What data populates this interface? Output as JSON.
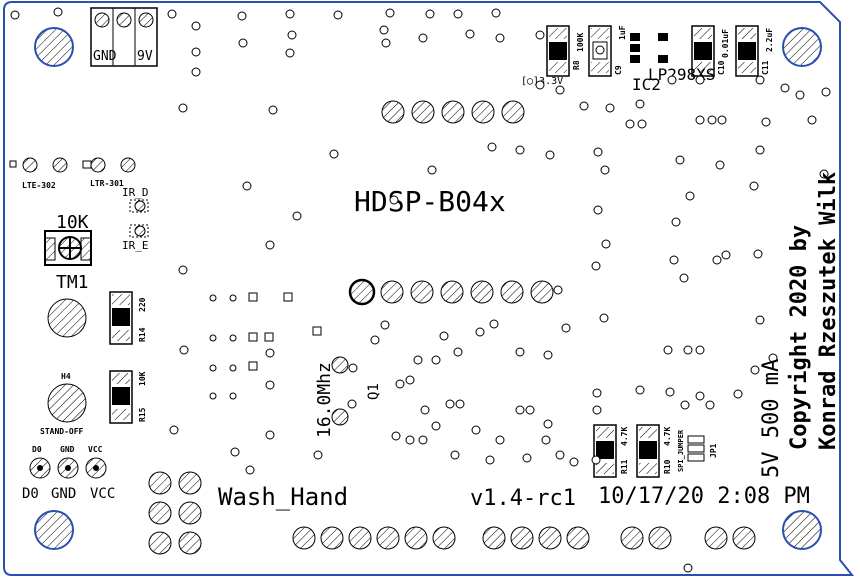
{
  "colors": {
    "outline": "#2a4fb0",
    "ink": "#000000",
    "pad_fill": "#ffffff"
  },
  "board": {
    "power_header_gnd": "GND",
    "power_header_9v": "9V",
    "display_label": "HDSP-B04x",
    "pot_value": "10K",
    "pot_ref": "TM1",
    "crystal_label": "16.0Mhz",
    "crystal_ref": "Q1",
    "regulator_label": "LP298XS",
    "regulator_ref": "IC2",
    "power_mark": "[◯]3.3V",
    "ir_d": "IR_D",
    "ir_e": "IR_E",
    "lte302": "LTE-302",
    "ltr301": "LTR-301",
    "r14_value": "220",
    "r14_ref": "R14",
    "r15_value": "10K",
    "r15_ref": "R15",
    "r8_value": "100K",
    "r8_ref": "R8",
    "c9_value": "1uF",
    "c9_ref": "C9",
    "c10_value": "0.01uF",
    "c10_ref": "C10",
    "c11_value": "2.2uF",
    "c11_ref": "C11",
    "r11_value": "4.7K",
    "r11_ref": "R11",
    "r10_value": "4.7K",
    "r10_ref": "R10",
    "spi_jumper": "SPI_JUMPER",
    "jp1": "JP1",
    "h4": "H4",
    "standoff": "STAND-OFF",
    "small_d0": "D0",
    "small_gnd": "GND",
    "small_vcc": "VCC",
    "big_d0": "D0",
    "big_gnd": "GND",
    "big_vcc": "VCC",
    "project_name": "Wash_Hand",
    "version": "v1.4-rc1",
    "timestamp": "10/17/20 2:08 PM",
    "current": "5V 500 mA",
    "copyright_1": "Copyright 2020 by",
    "copyright_2": "Konrad Rzeszutek Wilk"
  }
}
